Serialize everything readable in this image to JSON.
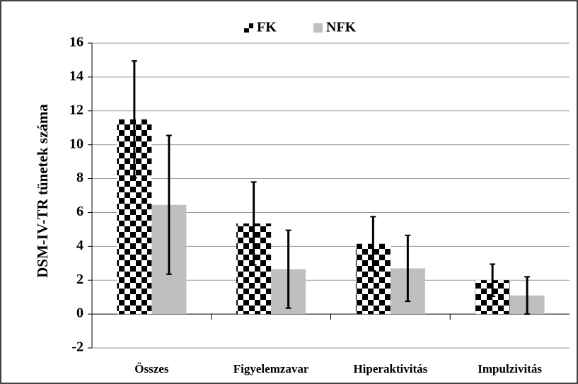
{
  "chart_data": {
    "type": "bar",
    "y_label": "DSM-IV-TR tünetek száma",
    "categories": [
      "Összes",
      "Figyelemzavar",
      "Hiperaktivitás",
      "Impulzivitás"
    ],
    "series": [
      {
        "name": "FK",
        "color": "#000000",
        "pattern": "checkerboard",
        "values": [
          11.5,
          5.35,
          4.15,
          2.0
        ],
        "errors": [
          3.45,
          2.45,
          1.6,
          0.95
        ]
      },
      {
        "name": "NFK",
        "color": "#bfbfbf",
        "values": [
          6.45,
          2.65,
          2.7,
          1.1
        ],
        "errors": [
          4.1,
          2.3,
          1.95,
          1.1
        ]
      }
    ],
    "ylim": [
      -2,
      16
    ],
    "yticks": [
      -2,
      0,
      2,
      4,
      6,
      8,
      10,
      12,
      14,
      16
    ],
    "grid": true,
    "legend": "top"
  }
}
